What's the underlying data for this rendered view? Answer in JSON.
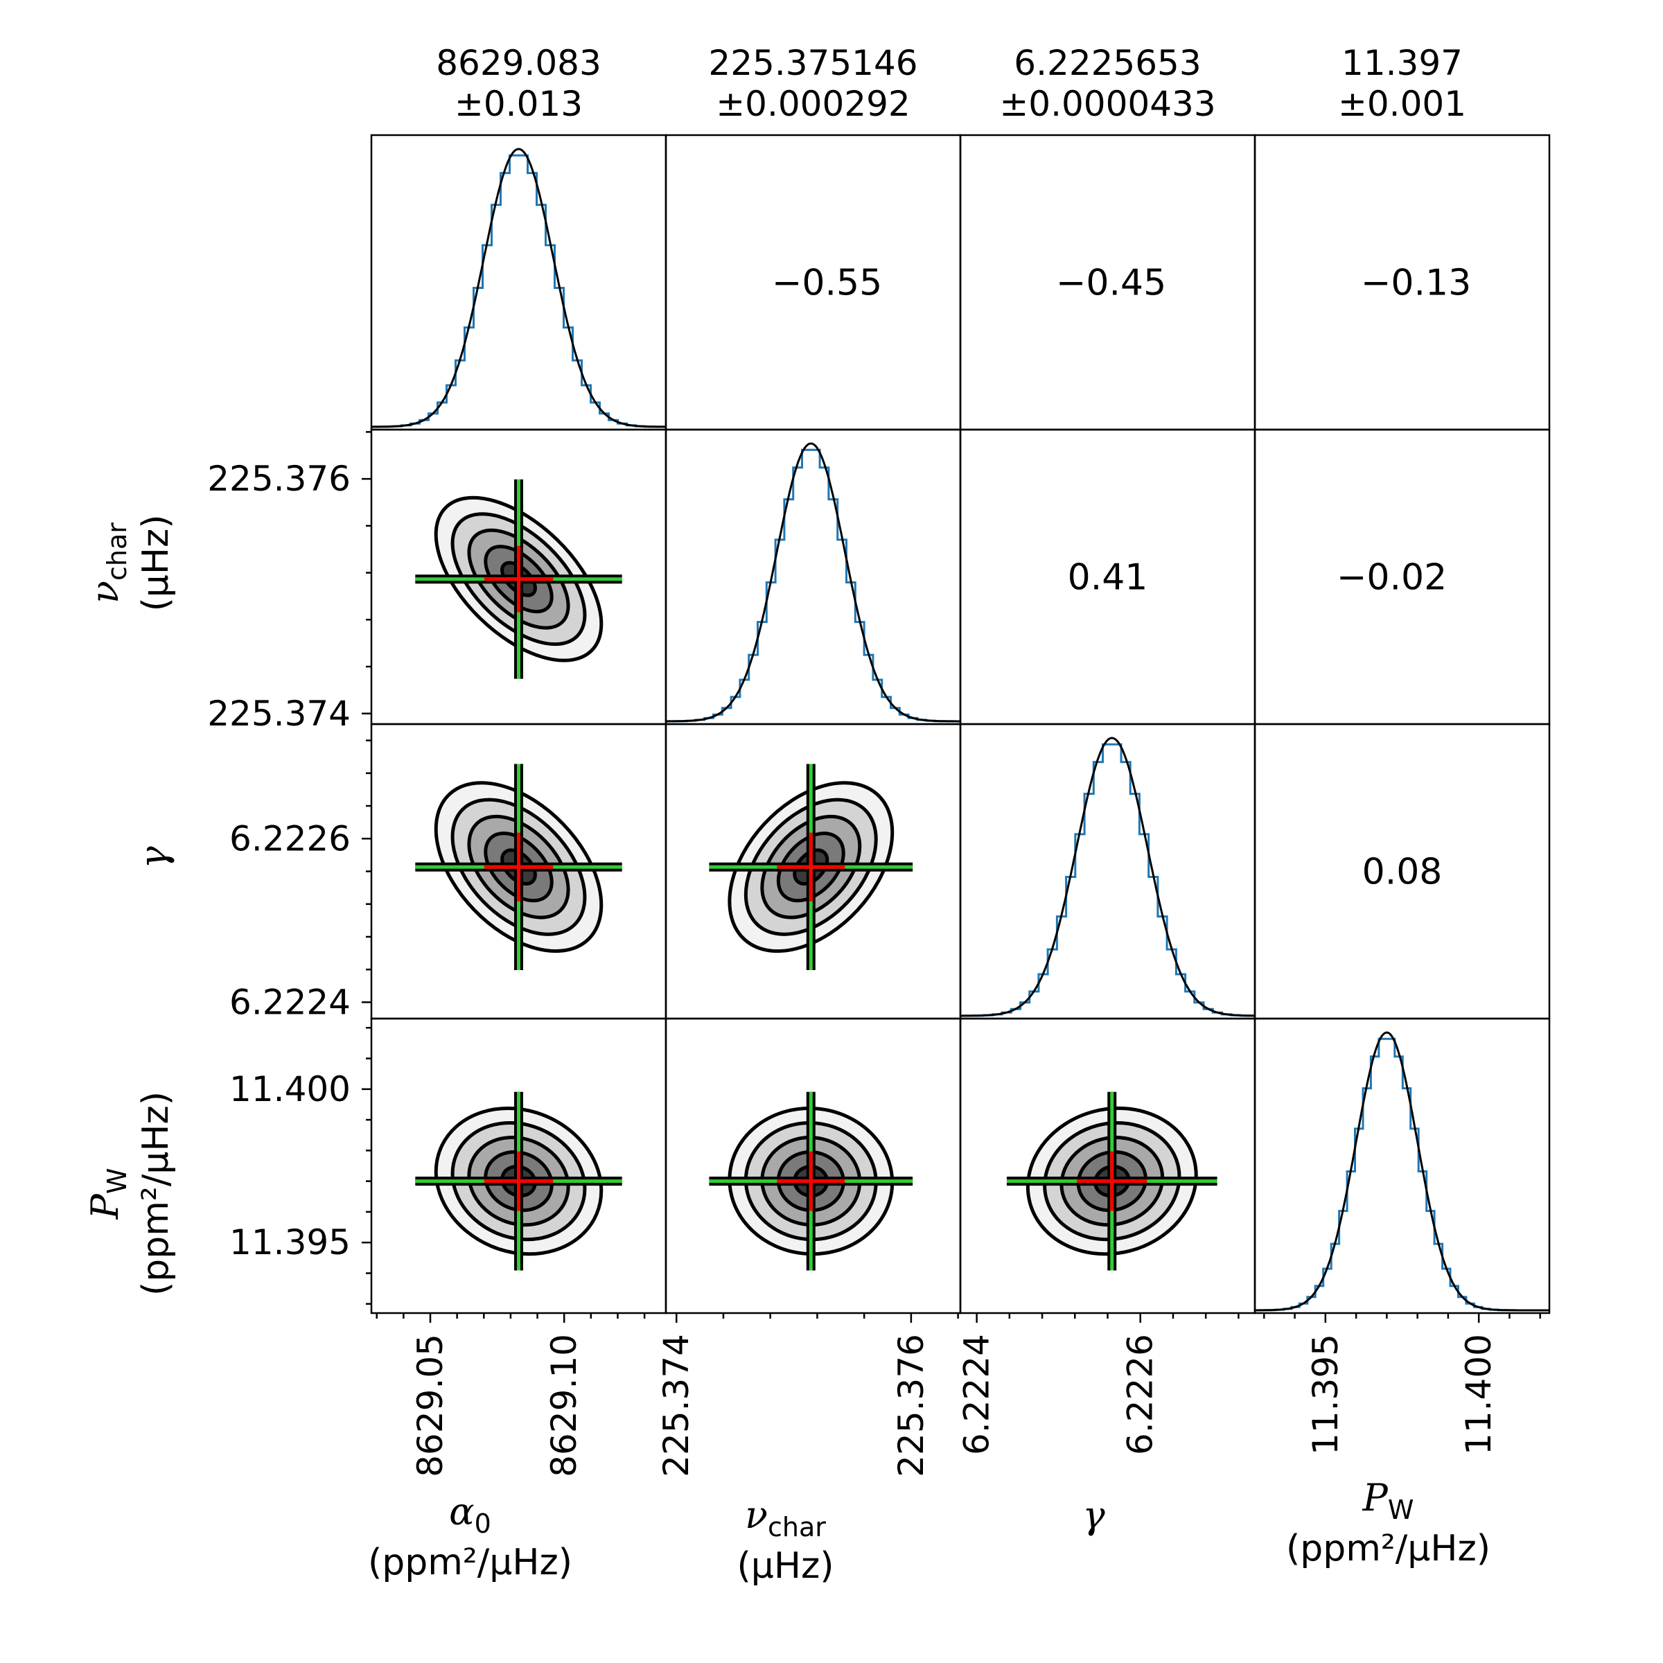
{
  "chart_data": {
    "type": "corner",
    "parameters": [
      {
        "symbol": "α",
        "subscript": "0",
        "unit": "(ppm²/μHz)",
        "mean": 8629.083,
        "value_text": "8629.083",
        "error_text": "±0.013",
        "ticks": [
          8629.05,
          8629.1
        ],
        "tick_labels": [
          "8629.05",
          "8629.10"
        ],
        "range": [
          8629.028,
          8629.138
        ],
        "sigma": 0.013
      },
      {
        "symbol": "ν",
        "subscript": "char",
        "unit": "(μHz)",
        "mean": 225.375146,
        "value_text": "225.375146",
        "error_text": "±0.000292",
        "ticks": [
          225.374,
          225.376
        ],
        "tick_labels": [
          "225.374",
          "225.376"
        ],
        "range": [
          225.37391,
          225.37642
        ],
        "sigma": 0.000292
      },
      {
        "symbol": "γ",
        "subscript": "",
        "unit": "",
        "mean": 6.2225653,
        "value_text": "6.2225653",
        "error_text": "±0.0000433",
        "ticks": [
          6.2224,
          6.2226
        ],
        "tick_labels": [
          "6.2224",
          "6.2226"
        ],
        "range": [
          6.22238,
          6.22274
        ],
        "sigma": 4.33e-05
      },
      {
        "symbol": "P",
        "subscript": "W",
        "unit": "(ppm²/μHz)",
        "mean": 11.397,
        "value_text": "11.397",
        "error_text": "±0.001",
        "ticks": [
          11.395,
          11.4
        ],
        "tick_labels": [
          "11.395",
          "11.400"
        ],
        "range": [
          11.3927,
          11.4023
        ],
        "sigma": 0.001
      }
    ],
    "correlations": [
      {
        "row": 0,
        "col": 1,
        "label": "−0.55"
      },
      {
        "row": 0,
        "col": 2,
        "label": "−0.45"
      },
      {
        "row": 0,
        "col": 3,
        "label": "−0.13"
      },
      {
        "row": 1,
        "col": 2,
        "label": "0.41"
      },
      {
        "row": 1,
        "col": 3,
        "label": "−0.02"
      },
      {
        "row": 2,
        "col": 3,
        "label": "0.08"
      }
    ],
    "contour_sigma_levels": [
      0.5,
      1.0,
      1.5,
      2.0,
      2.5
    ],
    "colors": {
      "histogram": "#1f77b4",
      "fit_line": "#000000",
      "marker_inner": "#ff0000",
      "marker_outer": "#33cc33",
      "contour_fills": [
        "#f2f2f2",
        "#d4d4d4",
        "#a9a9a9",
        "#7a7a7a",
        "#3a3a3a"
      ]
    }
  }
}
